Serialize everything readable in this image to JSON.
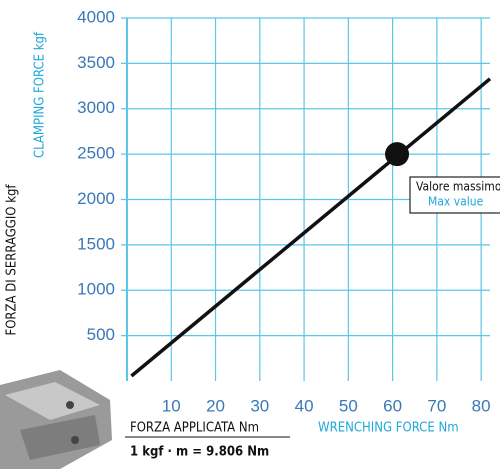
{
  "chart_data": {
    "type": "line",
    "x_label": "FORZA APPLICATA Nm",
    "x_label_2": "WRENCHING FORCE Nm",
    "y_label": "FORZA DI SERRAGGIO kgf",
    "y_label_2": "CLAMPING FORCE kgf",
    "footnote": "1 kgf · m = 9.806 Nm",
    "x": [
      1,
      82
    ],
    "series": [
      {
        "color": "#111111",
        "values": [
          55,
          3330
        ]
      }
    ],
    "annotation": {
      "x": 61,
      "y": 2500,
      "label": "Valore massimo",
      "label_2": "Max value"
    },
    "xlim": [
      0,
      82
    ],
    "ylim": [
      0,
      4000
    ],
    "xticks": [
      10,
      20,
      30,
      40,
      50,
      60,
      70,
      80
    ],
    "yticks": [
      500,
      1000,
      1500,
      2000,
      2500,
      3000,
      3500,
      4000
    ],
    "grid": true,
    "grid_color": "#5cc6e6"
  }
}
